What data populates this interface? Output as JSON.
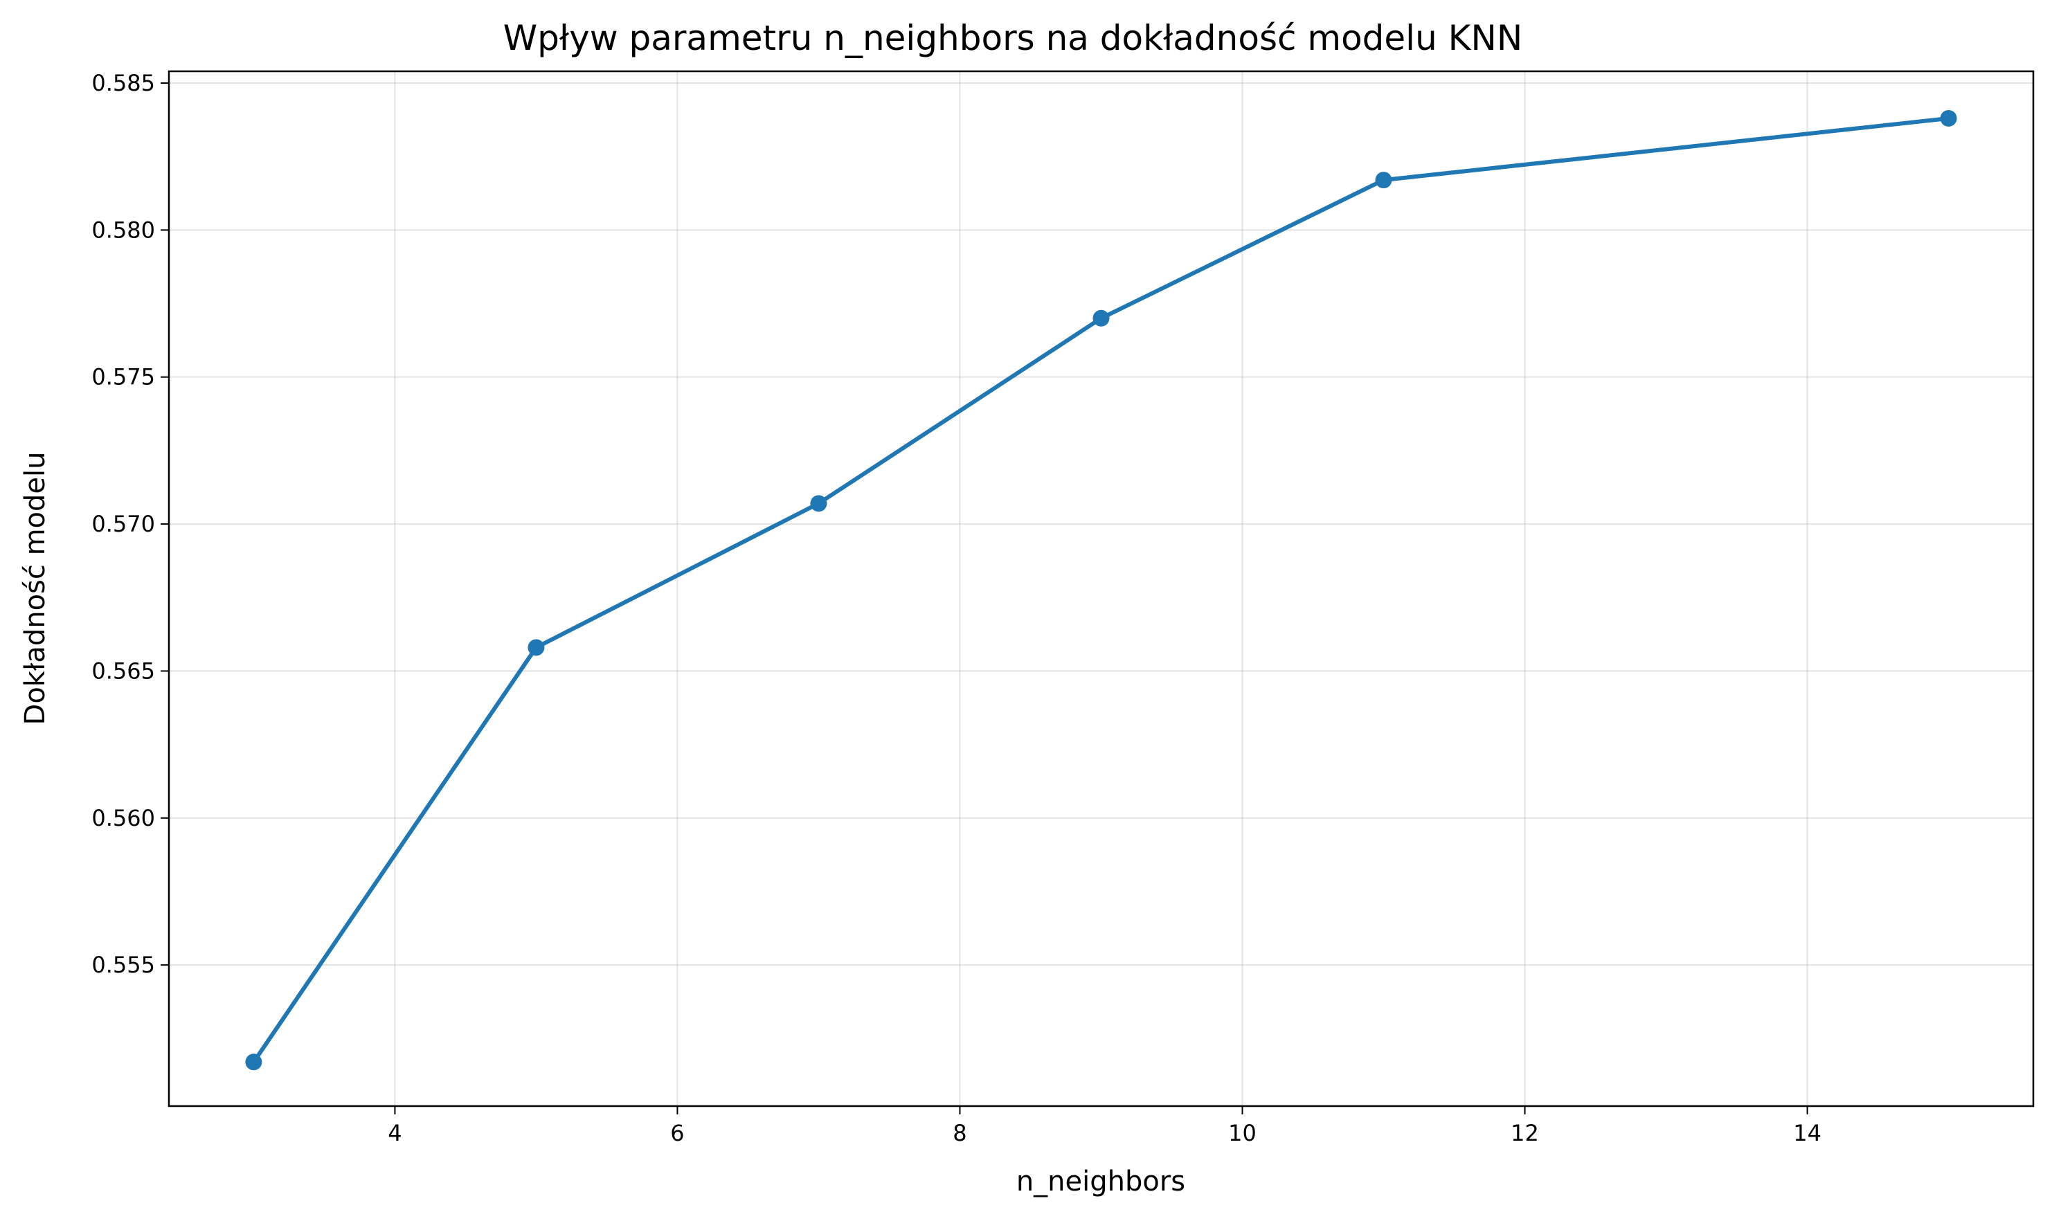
{
  "chart_data": {
    "type": "line",
    "title": "Wpływ parametru n_neighbors na dokładność modelu KNN",
    "xlabel": "n_neighbors",
    "ylabel": "Dokładność modelu",
    "xlim": [
      2.4,
      15.6
    ],
    "ylim": [
      0.5502,
      0.5854
    ],
    "xticks": [
      4,
      6,
      8,
      10,
      12,
      14
    ],
    "xtick_labels": [
      "4",
      "6",
      "8",
      "10",
      "12",
      "14"
    ],
    "yticks": [
      0.555,
      0.56,
      0.565,
      0.57,
      0.575,
      0.58,
      0.585
    ],
    "ytick_labels": [
      "0.555",
      "0.560",
      "0.565",
      "0.570",
      "0.575",
      "0.580",
      "0.585"
    ],
    "grid": true,
    "series": [
      {
        "color": "#1f77b4",
        "marker": "circle",
        "x": [
          3,
          5,
          7,
          9,
          11,
          15
        ],
        "y": [
          0.5517,
          0.5658,
          0.5707,
          0.577,
          0.5817,
          0.5838
        ]
      }
    ]
  }
}
